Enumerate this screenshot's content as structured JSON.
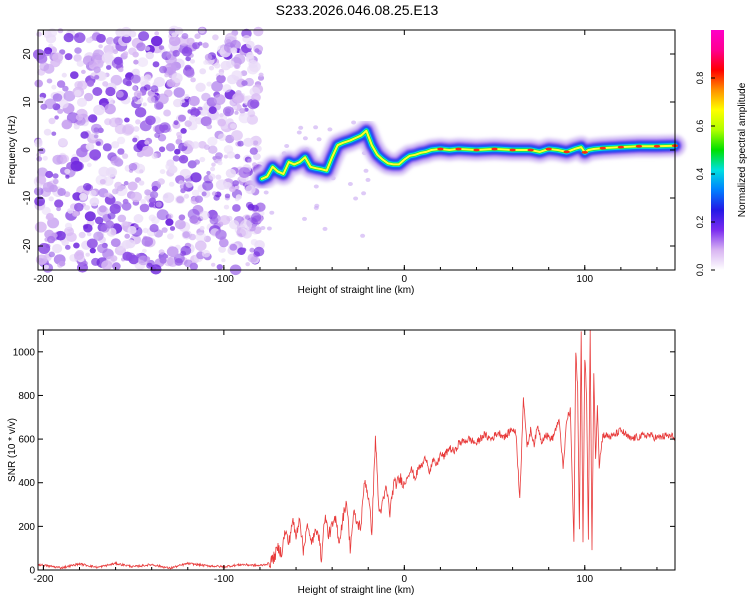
{
  "page_title": "S233.2026.046.08.25.E13",
  "chart_data": [
    {
      "id": "spectrogram",
      "type": "heatmap",
      "title": "S233.2026.046.08.25.E13",
      "xlabel": "Height of straight line (km)",
      "ylabel": "Frequency (Hz)",
      "xlim": [
        -203,
        150
      ],
      "ylim": [
        -25,
        25
      ],
      "xticks": [
        -200,
        -100,
        0,
        100
      ],
      "xtick_labels": [
        "-200",
        "-100",
        "0",
        "100"
      ],
      "yticks": [
        -20,
        -10,
        0,
        10,
        20
      ],
      "ytick_labels": [
        "-20",
        "-10",
        "0",
        "10",
        "20"
      ],
      "noise_region_x": [
        -203,
        -79
      ],
      "ridge": {
        "description_free_points": [
          [
            -79,
            -6
          ],
          [
            -76,
            -5.5
          ],
          [
            -73,
            -3.5
          ],
          [
            -70,
            -4.5
          ],
          [
            -67,
            -5
          ],
          [
            -64,
            -2.5
          ],
          [
            -61,
            -3
          ],
          [
            -58,
            -2.5
          ],
          [
            -55,
            -1.5
          ],
          [
            -52,
            -3.5
          ],
          [
            -49,
            -3.8
          ],
          [
            -46,
            -4
          ],
          [
            -43,
            -4.3
          ],
          [
            -40,
            -1.5
          ],
          [
            -37,
            1
          ],
          [
            -34,
            1.5
          ],
          [
            -30,
            2
          ],
          [
            -27,
            2.5
          ],
          [
            -24,
            3
          ],
          [
            -21,
            4
          ],
          [
            -18,
            1
          ],
          [
            -15,
            -1
          ],
          [
            -12,
            -2
          ],
          [
            -9,
            -2.8
          ],
          [
            -6,
            -3
          ],
          [
            -3,
            -3
          ],
          [
            0,
            -2
          ],
          [
            3,
            -1.2
          ],
          [
            6,
            -1
          ],
          [
            9,
            -0.6
          ],
          [
            12,
            -0.4
          ],
          [
            15,
            0
          ],
          [
            20,
            0.2
          ],
          [
            25,
            0
          ],
          [
            30,
            0.2
          ],
          [
            40,
            0
          ],
          [
            50,
            0.2
          ],
          [
            60,
            0
          ],
          [
            70,
            0
          ],
          [
            75,
            -0.4
          ],
          [
            80,
            0.2
          ],
          [
            85,
            0
          ],
          [
            90,
            -0.4
          ],
          [
            95,
            0.3
          ],
          [
            98,
            0.6
          ],
          [
            100,
            -0.5
          ],
          [
            102,
            0
          ],
          [
            105,
            0.2
          ],
          [
            110,
            0.4
          ],
          [
            120,
            0.6
          ],
          [
            130,
            0.8
          ],
          [
            140,
            0.8
          ],
          [
            150,
            0.9
          ]
        ]
      },
      "colorbar": {
        "label": "Normalized spectral amplitude",
        "range": [
          0,
          1
        ],
        "ticks": [
          0,
          0.2,
          0.4,
          0.6,
          0.8
        ],
        "tick_labels": [
          "0.0",
          "0.2",
          "0.4",
          "0.6",
          "0.8"
        ],
        "colors": [
          "#ffffff",
          "#d8b4f2",
          "#7b2cf0",
          "#2418e6",
          "#0080ff",
          "#00e0e0",
          "#00e000",
          "#b0ff00",
          "#ffff00",
          "#ff9000",
          "#ff0000",
          "#ff0090",
          "#ff00c8"
        ]
      }
    },
    {
      "id": "snr",
      "type": "line",
      "xlabel": "Height of straight line (km)",
      "ylabel": "SNR (10 * v/v)",
      "xlim": [
        -203,
        150
      ],
      "ylim": [
        0,
        1100
      ],
      "xticks": [
        -200,
        -100,
        0,
        100
      ],
      "xtick_labels": [
        "-200",
        "-100",
        "0",
        "100"
      ],
      "yticks": [
        0,
        200,
        400,
        600,
        800,
        1000
      ],
      "ytick_labels": [
        "0",
        "200",
        "400",
        "600",
        "800",
        "1000"
      ],
      "series": [
        {
          "name": "SNR",
          "color": "#e83a3a",
          "x": [
            -203,
            -190,
            -180,
            -170,
            -160,
            -150,
            -140,
            -130,
            -120,
            -110,
            -100,
            -90,
            -80,
            -75,
            -72,
            -70,
            -68,
            -66,
            -64,
            -62,
            -60,
            -58,
            -56,
            -54,
            -52,
            -50,
            -48,
            -46,
            -44,
            -42,
            -40,
            -38,
            -36,
            -34,
            -32,
            -30,
            -28,
            -26,
            -24,
            -22,
            -20,
            -18,
            -16,
            -14,
            -12,
            -10,
            -8,
            -6,
            -4,
            -2,
            0,
            2,
            4,
            6,
            8,
            10,
            12,
            14,
            16,
            18,
            20,
            22,
            25,
            28,
            30,
            33,
            36,
            40,
            44,
            48,
            52,
            56,
            60,
            62,
            64,
            66,
            68,
            70,
            72,
            74,
            76,
            78,
            80,
            82,
            84,
            86,
            88,
            90,
            92,
            94,
            95,
            96,
            97,
            98,
            99,
            100,
            101,
            102,
            103,
            104,
            105,
            106,
            107,
            108,
            110,
            115,
            120,
            125,
            130,
            135,
            140,
            145,
            150
          ],
          "values": [
            25,
            10,
            28,
            12,
            30,
            15,
            25,
            8,
            30,
            20,
            15,
            25,
            20,
            30,
            60,
            100,
            80,
            180,
            120,
            230,
            150,
            250,
            80,
            210,
            130,
            150,
            200,
            50,
            250,
            160,
            200,
            230,
            130,
            240,
            320,
            100,
            260,
            210,
            200,
            420,
            340,
            180,
            610,
            260,
            300,
            380,
            260,
            390,
            400,
            420,
            390,
            440,
            460,
            420,
            470,
            480,
            520,
            450,
            500,
            480,
            530,
            520,
            560,
            540,
            580,
            590,
            600,
            580,
            620,
            600,
            630,
            610,
            650,
            620,
            320,
            800,
            560,
            640,
            580,
            660,
            590,
            620,
            610,
            600,
            650,
            680,
            460,
            690,
            730,
            120,
            1000,
            850,
            180,
            1090,
            110,
            980,
            800,
            140,
            1100,
            90,
            900,
            520,
            760,
            480,
            620,
            610,
            640,
            600,
            610,
            620,
            605,
            615,
            610
          ]
        }
      ]
    }
  ]
}
